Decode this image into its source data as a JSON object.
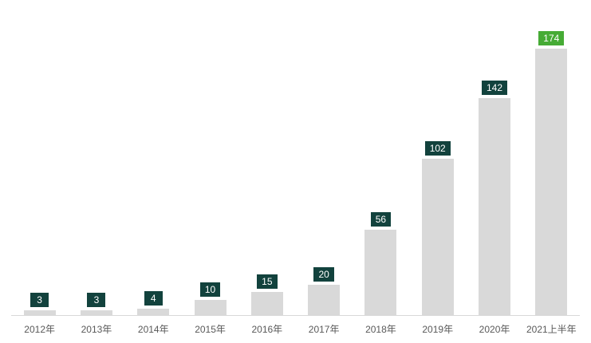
{
  "chart_data": {
    "type": "bar",
    "title": "",
    "xlabel": "",
    "ylabel": "",
    "categories": [
      "2012年",
      "2013年",
      "2014年",
      "2015年",
      "2016年",
      "2017年",
      "2018年",
      "2019年",
      "2020年",
      "2021上半年"
    ],
    "values": [
      3,
      3,
      4,
      10,
      15,
      20,
      56,
      102,
      142,
      174
    ],
    "ylim": [
      0,
      206
    ],
    "grid": false,
    "legend": "none",
    "data_labels": true,
    "highlight_index": 9,
    "colors": {
      "bar": "#d9d9d9",
      "label_badge": "#12423d",
      "label_badge_highlight": "#46ab35",
      "label_text": "#ffffff",
      "axis_line": "#d9d9d9",
      "tick_label": "#595959",
      "background": "#ffffff"
    }
  }
}
